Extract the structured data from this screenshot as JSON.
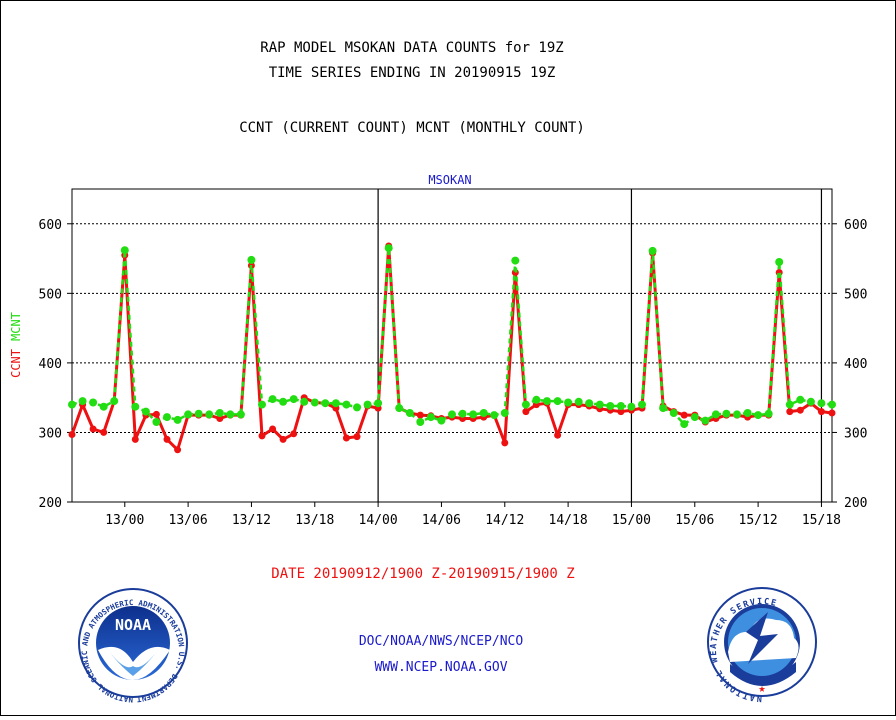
{
  "header": {
    "title_line1": "RAP MODEL MSOKAN DATA COUNTS for 19Z",
    "title_line2": "TIME SERIES ENDING IN 20190915 19Z",
    "subtitle": "CCNT (CURRENT COUNT) MCNT (MONTHLY COUNT)"
  },
  "footer": {
    "date_range": "DATE 20190912/1900 Z-20190915/1900 Z",
    "org": "DOC/NOAA/NWS/NCEP/NCO",
    "url": "WWW.NCEP.NOAA.GOV"
  },
  "logos": {
    "left_text": "NOAA",
    "left_ring": "NATIONAL OCEANIC AND ATMOSPHERIC ADMINISTRATION  U.S. DEPARTMENT OF COMMERCE",
    "right_ring": "NATIONAL WEATHER SERVICE"
  },
  "colors": {
    "ccnt": "#ee1111",
    "mcnt": "#22dd11",
    "panel_title": "#1a1acc",
    "footer_text": "#1a1acc",
    "date_text": "#ee1111"
  },
  "chart_data": {
    "type": "line",
    "title": "MSOKAN",
    "ylabel_parts": [
      "CCNT",
      "MCNT"
    ],
    "ylim": [
      200,
      650
    ],
    "yticks": [
      200,
      300,
      400,
      500,
      600
    ],
    "xlim_hours": [
      0,
      72
    ],
    "xtick_labels": [
      "13/00",
      "13/06",
      "13/12",
      "13/18",
      "14/00",
      "14/06",
      "14/12",
      "14/18",
      "15/00",
      "15/06",
      "15/12",
      "15/18"
    ],
    "grid": true,
    "series": [
      {
        "name": "CCNT",
        "color": "#ee1111",
        "values": [
          297,
          340,
          305,
          300,
          345,
          555,
          290,
          325,
          326,
          290,
          275,
          325,
          325,
          325,
          320,
          325,
          325,
          540,
          295,
          305,
          290,
          298,
          350,
          343,
          342,
          335,
          292,
          294,
          338,
          335,
          568,
          335,
          328,
          325,
          324,
          320,
          322,
          320,
          320,
          322,
          325,
          285,
          530,
          330,
          340,
          342,
          296,
          340,
          340,
          338,
          334,
          332,
          330,
          332,
          335,
          558,
          338,
          330,
          325,
          325,
          315,
          320,
          325,
          325,
          322,
          325,
          325,
          530,
          330,
          332,
          342,
          330,
          328
        ]
      },
      {
        "name": "MCNT",
        "color": "#22dd11",
        "values": [
          340,
          345,
          343,
          337,
          345,
          562,
          337,
          330,
          315,
          322,
          318,
          326,
          327,
          326,
          328,
          326,
          326,
          548,
          340,
          348,
          344,
          348,
          344,
          343,
          342,
          342,
          340,
          336,
          340,
          342,
          565,
          335,
          328,
          315,
          322,
          317,
          326,
          327,
          326,
          328,
          325,
          328,
          547,
          340,
          347,
          345,
          345,
          343,
          344,
          342,
          340,
          338,
          338,
          337,
          340,
          561,
          335,
          328,
          312,
          322,
          317,
          326,
          327,
          326,
          328,
          325,
          327,
          545,
          340,
          347,
          344,
          342,
          340
        ]
      }
    ]
  }
}
